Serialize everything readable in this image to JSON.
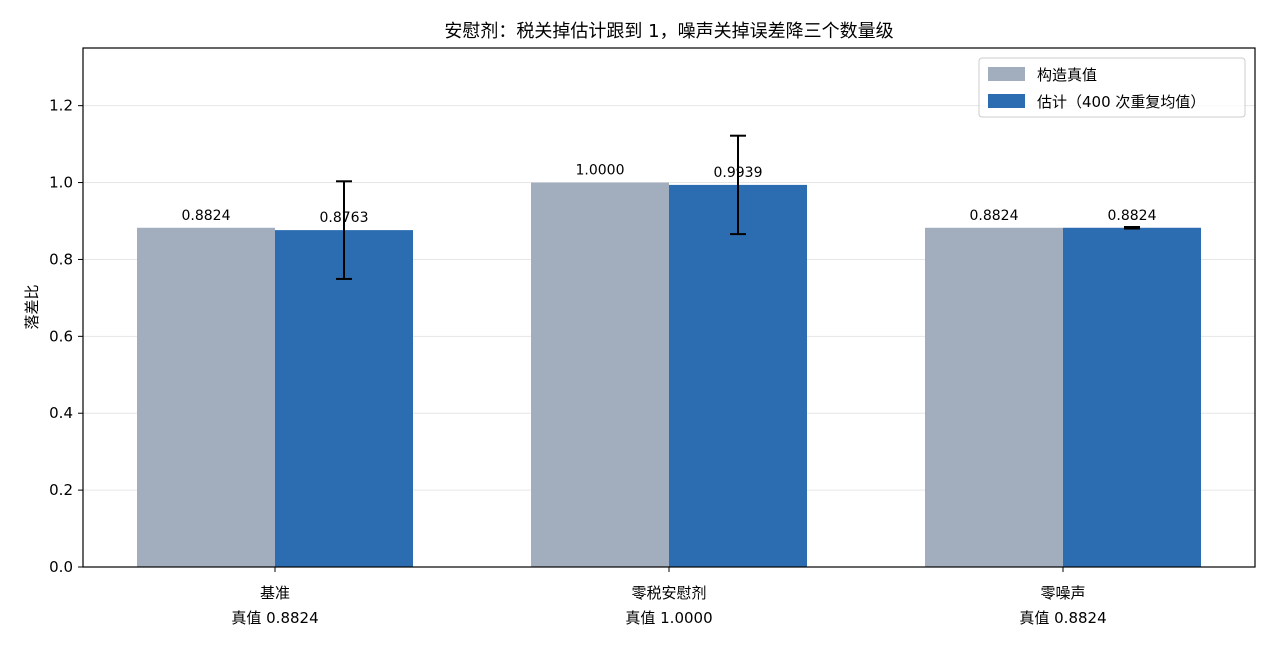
{
  "chart_data": {
    "type": "bar",
    "title": "安慰剂：税关掉估计跟到 1，噪声关掉误差降三个数量级",
    "xlabel": "",
    "ylabel": "落差比",
    "ylim": [
      0,
      1.35
    ],
    "yticks": [
      0.0,
      0.2,
      0.4,
      0.6,
      0.8,
      1.0,
      1.2
    ],
    "ytick_labels": [
      "0.0",
      "0.2",
      "0.4",
      "0.6",
      "0.8",
      "1.0",
      "1.2"
    ],
    "grid": "horizontal",
    "legend_position": "top-right",
    "categories": [
      "基准",
      "零税安慰剂",
      "零噪声"
    ],
    "category_sublabels": [
      "真值 0.8824",
      "真值 1.0000",
      "真值 0.8824"
    ],
    "series": [
      {
        "name": "构造真值",
        "color": "#a2aebe",
        "values": [
          0.8824,
          1.0,
          0.8824
        ],
        "value_labels": [
          "0.8824",
          "1.0000",
          "0.8824"
        ]
      },
      {
        "name": "估计（400 次重复均值）",
        "color": "#2c6db2",
        "values": [
          0.8763,
          0.9939,
          0.8824
        ],
        "value_labels": [
          "0.8763",
          "0.9939",
          "0.8824"
        ],
        "error": [
          0.127,
          0.128,
          0.002
        ]
      }
    ]
  }
}
